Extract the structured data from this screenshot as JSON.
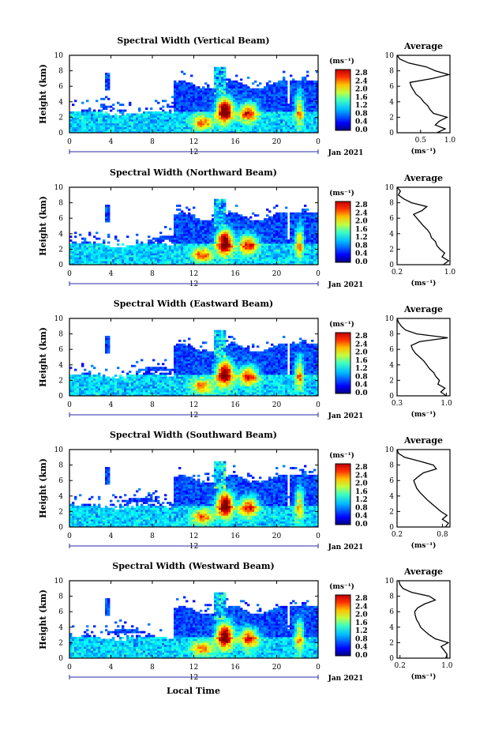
{
  "figure": {
    "xlabel": "Local Time",
    "date_label": "Jan 2021",
    "day_label": "12",
    "colorbar_unit": "(ms⁻¹)",
    "colorbar_ticks": [
      "2.8",
      "2.4",
      "2.0",
      "1.6",
      "1.2",
      "0.8",
      "0.4",
      "0.0"
    ],
    "ylabel": "Height (km)",
    "avg_title": "Average",
    "avg_xlabel": "(ms⁻¹)"
  },
  "chart_data": [
    {
      "type": "heatmap",
      "title": "Spectral Width (Vertical Beam)",
      "ylabel": "Height (km)",
      "xlabel": "",
      "xlim": [
        0,
        24
      ],
      "ylim": [
        0,
        10
      ],
      "x_ticks": [
        "0",
        "4",
        "8",
        "12",
        "16",
        "20",
        "0"
      ],
      "y_ticks": [
        "0",
        "2",
        "4",
        "6",
        "8",
        "10"
      ],
      "colorbar": {
        "label": "(ms⁻¹)",
        "range": [
          0,
          3.0
        ],
        "ticks": [
          "2.8",
          "2.4",
          "2.0",
          "1.6",
          "1.2",
          "0.8",
          "0.4",
          "0.0"
        ]
      },
      "average_profile": {
        "title": "Average",
        "xlabel": "(ms⁻¹)",
        "xlim": [
          0.1,
          1.0
        ],
        "x_ticks": [
          "0.5",
          "1.0"
        ],
        "height": [
          0,
          0.5,
          1,
          1.5,
          2,
          2.5,
          3,
          3.5,
          4,
          4.5,
          5,
          5.5,
          6,
          6.5,
          7,
          7.5,
          8,
          8.5,
          9,
          9.5,
          10
        ],
        "values": [
          0.78,
          0.92,
          0.75,
          0.82,
          0.95,
          0.72,
          0.66,
          0.62,
          0.55,
          0.5,
          0.42,
          0.38,
          0.34,
          0.32,
          0.7,
          0.98,
          0.75,
          0.6,
          0.3,
          0.15,
          0.1
        ]
      }
    },
    {
      "type": "heatmap",
      "title": "Spectral Width (Northward Beam)",
      "ylabel": "Height (km)",
      "xlabel": "",
      "xlim": [
        0,
        24
      ],
      "ylim": [
        0,
        10
      ],
      "x_ticks": [
        "0",
        "4",
        "8",
        "12",
        "16",
        "20",
        "0"
      ],
      "y_ticks": [
        "0",
        "2",
        "4",
        "6",
        "8",
        "10"
      ],
      "colorbar": {
        "label": "(ms⁻¹)",
        "range": [
          0,
          3.0
        ],
        "ticks": [
          "2.8",
          "2.4",
          "2.0",
          "1.6",
          "1.2",
          "0.8",
          "0.4",
          "0.0"
        ]
      },
      "average_profile": {
        "title": "Average",
        "xlabel": "(ms⁻¹)",
        "xlim": [
          0.2,
          1.0
        ],
        "x_ticks": [
          "0.2",
          "1.0"
        ],
        "height": [
          0,
          0.5,
          1,
          1.5,
          2,
          2.5,
          3,
          3.5,
          4,
          4.5,
          5,
          5.5,
          6,
          6.5,
          7,
          7.5,
          8,
          8.5,
          9,
          9.5,
          10
        ],
        "values": [
          0.9,
          0.98,
          0.88,
          0.92,
          0.85,
          0.8,
          0.78,
          0.72,
          0.7,
          0.66,
          0.6,
          0.55,
          0.5,
          0.45,
          0.58,
          0.65,
          0.42,
          0.3,
          0.22,
          0.25,
          0.2
        ]
      }
    },
    {
      "type": "heatmap",
      "title": "Spectral Width (Eastward Beam)",
      "ylabel": "Height (km)",
      "xlabel": "",
      "xlim": [
        0,
        24
      ],
      "ylim": [
        0,
        10
      ],
      "x_ticks": [
        "0",
        "4",
        "8",
        "12",
        "16",
        "20",
        "0"
      ],
      "y_ticks": [
        "0",
        "2",
        "4",
        "6",
        "8",
        "10"
      ],
      "colorbar": {
        "label": "(ms⁻¹)",
        "range": [
          0,
          3.0
        ],
        "ticks": [
          "2.8",
          "2.4",
          "2.0",
          "1.6",
          "1.2",
          "0.8",
          "0.4",
          "0.0"
        ]
      },
      "average_profile": {
        "title": "Average",
        "xlabel": "(ms⁻¹)",
        "xlim": [
          0.3,
          1.05
        ],
        "x_ticks": [
          "0.3",
          "1.0"
        ],
        "height": [
          0,
          0.5,
          1,
          1.5,
          2,
          2.5,
          3,
          3.5,
          4,
          4.5,
          5,
          5.5,
          6,
          6.5,
          7,
          7.5,
          8,
          8.5,
          9,
          9.5,
          10
        ],
        "values": [
          1.0,
          0.92,
          0.98,
          0.88,
          0.9,
          0.85,
          0.82,
          0.76,
          0.72,
          0.68,
          0.62,
          0.56,
          0.52,
          0.5,
          0.62,
          1.02,
          0.58,
          0.42,
          0.36,
          0.32,
          0.3
        ]
      }
    },
    {
      "type": "heatmap",
      "title": "Spectral Width (Southward Beam)",
      "ylabel": "Height (km)",
      "xlabel": "",
      "xlim": [
        0,
        24
      ],
      "ylim": [
        0,
        10
      ],
      "x_ticks": [
        "0",
        "4",
        "8",
        "12",
        "16",
        "20",
        "0"
      ],
      "y_ticks": [
        "0",
        "2",
        "4",
        "6",
        "8",
        "10"
      ],
      "colorbar": {
        "label": "(ms⁻¹)",
        "range": [
          0,
          3.0
        ],
        "ticks": [
          "2.8",
          "2.4",
          "2.0",
          "1.6",
          "1.2",
          "0.8",
          "0.4",
          "0.0"
        ]
      },
      "average_profile": {
        "title": "Average",
        "xlabel": "(ms⁻¹)",
        "xlim": [
          0.2,
          0.9
        ],
        "x_ticks": [
          "0.2",
          "0.8"
        ],
        "height": [
          0,
          0.5,
          1,
          1.5,
          2,
          2.5,
          3,
          3.5,
          4,
          4.5,
          5,
          5.5,
          6,
          6.5,
          7,
          7.5,
          8,
          8.5,
          9,
          9.5,
          10
        ],
        "values": [
          0.84,
          0.88,
          0.8,
          0.86,
          0.78,
          0.72,
          0.66,
          0.6,
          0.55,
          0.5,
          0.46,
          0.44,
          0.42,
          0.48,
          0.55,
          0.72,
          0.68,
          0.5,
          0.3,
          0.22,
          0.2
        ]
      }
    },
    {
      "type": "heatmap",
      "title": "Spectral Width (Westward Beam)",
      "ylabel": "Height (km)",
      "xlabel": "Local Time",
      "xlim": [
        0,
        24
      ],
      "ylim": [
        0,
        10
      ],
      "x_ticks": [
        "0",
        "4",
        "8",
        "12",
        "16",
        "20",
        "0"
      ],
      "y_ticks": [
        "0",
        "2",
        "4",
        "6",
        "8",
        "10"
      ],
      "colorbar": {
        "label": "(ms⁻¹)",
        "range": [
          0,
          3.0
        ],
        "ticks": [
          "2.8",
          "2.4",
          "2.0",
          "1.6",
          "1.2",
          "0.8",
          "0.4",
          "0.0"
        ]
      },
      "average_profile": {
        "title": "Average",
        "xlabel": "(ms⁻¹)",
        "xlim": [
          0.15,
          1.05
        ],
        "x_ticks": [
          "0.2",
          "1.0"
        ],
        "height": [
          0,
          0.5,
          1,
          1.5,
          2,
          2.5,
          3,
          3.5,
          4,
          4.5,
          5,
          5.5,
          6,
          6.5,
          7,
          7.5,
          8,
          8.5,
          9,
          9.5,
          10
        ],
        "values": [
          0.98,
          1.0,
          0.95,
          0.9,
          1.02,
          0.8,
          0.7,
          0.62,
          0.55,
          0.52,
          0.48,
          0.46,
          0.45,
          0.5,
          0.62,
          0.8,
          0.7,
          0.4,
          0.25,
          0.2,
          0.18
        ]
      }
    }
  ]
}
